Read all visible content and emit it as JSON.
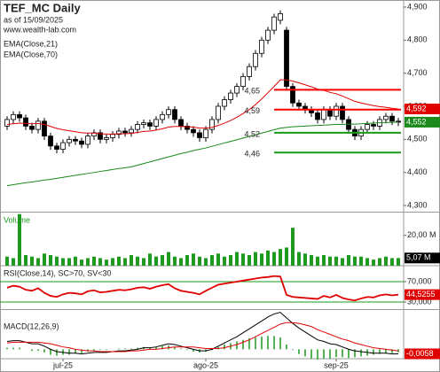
{
  "chart_data": [
    {
      "type": "candlestick",
      "title": "TEF_MC Daily",
      "subtitle": "as of 15/09/2025",
      "source": "www.wealth-lab.com",
      "ylim": [
        4280,
        4920
      ],
      "yticks": [
        {
          "value": 4300,
          "label": "4,300"
        },
        {
          "value": 4400,
          "label": "4,400"
        },
        {
          "value": 4500,
          "label": "4,500"
        },
        {
          "value": 4600,
          "label": "4,600"
        },
        {
          "value": 4700,
          "label": "4,700"
        },
        {
          "value": 4800,
          "label": "4,800"
        },
        {
          "value": 4900,
          "label": "4,900"
        }
      ],
      "open": [
        4540,
        4560,
        4575,
        4565,
        4540,
        4530,
        4555,
        4510,
        4480,
        4470,
        4490,
        4500,
        4495,
        4485,
        4510,
        4520,
        4500,
        4505,
        4515,
        4525,
        4520,
        4530,
        4545,
        4550,
        4540,
        4560,
        4575,
        4590,
        4560,
        4540,
        4530,
        4520,
        4505,
        4530,
        4560,
        4600,
        4620,
        4640,
        4660,
        4690,
        4720,
        4760,
        4800,
        4830,
        4860,
        4830,
        4660,
        4610,
        4600,
        4590,
        4580,
        4560,
        4590,
        4570,
        4600,
        4560,
        4530,
        4510,
        4530,
        4545,
        4540,
        4560,
        4570,
        4555
      ],
      "high": [
        4570,
        4585,
        4585,
        4575,
        4550,
        4565,
        4565,
        4520,
        4490,
        4500,
        4510,
        4510,
        4505,
        4520,
        4530,
        4530,
        4515,
        4525,
        4535,
        4535,
        4540,
        4555,
        4560,
        4560,
        4570,
        4585,
        4600,
        4600,
        4570,
        4550,
        4540,
        4530,
        4540,
        4570,
        4610,
        4630,
        4650,
        4670,
        4700,
        4730,
        4770,
        4810,
        4840,
        4880,
        4890,
        4840,
        4670,
        4620,
        4610,
        4600,
        4590,
        4600,
        4600,
        4610,
        4610,
        4570,
        4540,
        4540,
        4555,
        4555,
        4570,
        4580,
        4580,
        4565
      ],
      "low": [
        4528,
        4548,
        4553,
        4528,
        4518,
        4518,
        4498,
        4468,
        4458,
        4458,
        4478,
        4483,
        4473,
        4473,
        4498,
        4488,
        4488,
        4493,
        4503,
        4508,
        4508,
        4518,
        4533,
        4528,
        4528,
        4548,
        4563,
        4548,
        4528,
        4518,
        4508,
        4493,
        4493,
        4518,
        4548,
        4588,
        4608,
        4628,
        4648,
        4678,
        4708,
        4748,
        4788,
        4818,
        4848,
        4648,
        4598,
        4588,
        4578,
        4568,
        4548,
        4548,
        4558,
        4558,
        4548,
        4518,
        4498,
        4498,
        4518,
        4528,
        4528,
        4548,
        4543,
        4540
      ],
      "close": [
        4560,
        4575,
        4565,
        4540,
        4530,
        4555,
        4510,
        4480,
        4470,
        4490,
        4500,
        4495,
        4485,
        4510,
        4520,
        4500,
        4505,
        4515,
        4525,
        4520,
        4530,
        4545,
        4550,
        4540,
        4560,
        4575,
        4590,
        4560,
        4540,
        4530,
        4520,
        4505,
        4530,
        4560,
        4600,
        4620,
        4640,
        4660,
        4690,
        4720,
        4760,
        4800,
        4830,
        4870,
        4880,
        4660,
        4610,
        4600,
        4590,
        4580,
        4560,
        4590,
        4570,
        4600,
        4560,
        4530,
        4510,
        4530,
        4545,
        4540,
        4560,
        4570,
        4555,
        4552
      ],
      "series": [
        {
          "name": "EMA(Close,21)",
          "color": "#e00000",
          "last_label": "4,592",
          "values": [
            4545,
            4547,
            4549,
            4548,
            4547,
            4548,
            4545,
            4539,
            4533,
            4529,
            4526,
            4523,
            4520,
            4519,
            4519,
            4517,
            4516,
            4516,
            4517,
            4517,
            4518,
            4521,
            4524,
            4525,
            4528,
            4532,
            4537,
            4539,
            4539,
            4538,
            4537,
            4534,
            4534,
            4536,
            4542,
            4549,
            4557,
            4567,
            4578,
            4590,
            4605,
            4622,
            4641,
            4660,
            4680,
            4680,
            4676,
            4671,
            4665,
            4659,
            4652,
            4648,
            4642,
            4638,
            4631,
            4623,
            4615,
            4610,
            4606,
            4602,
            4599,
            4597,
            4594,
            4592
          ]
        },
        {
          "name": "EMA(Close,70)",
          "color": "#1a8a1a",
          "last_label": "4,552",
          "values": [
            4360,
            4363,
            4366,
            4369,
            4371,
            4374,
            4377,
            4379,
            4382,
            4385,
            4388,
            4391,
            4394,
            4397,
            4400,
            4403,
            4406,
            4409,
            4412,
            4414,
            4417,
            4422,
            4427,
            4432,
            4437,
            4442,
            4447,
            4452,
            4457,
            4461,
            4466,
            4470,
            4474,
            4479,
            4484,
            4489,
            4494,
            4499,
            4504,
            4509,
            4514,
            4519,
            4524,
            4529,
            4534,
            4536,
            4538,
            4539,
            4540,
            4541,
            4542,
            4543,
            4544,
            4545,
            4545,
            4546,
            4546,
            4547,
            4548,
            4549,
            4550,
            4551,
            4551,
            4552
          ]
        }
      ],
      "levels": [
        {
          "value": 4650,
          "label": "4,65",
          "color": "#ff0000"
        },
        {
          "value": 4590,
          "label": "4,59",
          "color": "#ff0000"
        },
        {
          "value": 4520,
          "label": "4,52",
          "color": "#1a9a1a"
        },
        {
          "value": 4460,
          "label": "4,46",
          "color": "#1a9a1a"
        }
      ]
    },
    {
      "type": "bar",
      "title": "Volume",
      "color": "#1f9a1f",
      "ylim": [
        0,
        35
      ],
      "yticks": [
        {
          "value": 20,
          "label": "20,00 M"
        }
      ],
      "last_label": "5,07 M",
      "values": [
        6,
        5,
        34,
        7,
        6,
        5,
        8,
        7,
        6,
        5,
        5,
        6,
        4,
        5,
        6,
        5,
        4,
        5,
        6,
        5,
        7,
        6,
        5,
        8,
        6,
        7,
        9,
        6,
        5,
        7,
        8,
        6,
        5,
        7,
        8,
        6,
        7,
        9,
        8,
        7,
        9,
        8,
        10,
        9,
        11,
        12,
        25,
        9,
        8,
        7,
        6,
        7,
        6,
        6,
        5,
        7,
        6,
        6,
        5,
        4,
        5,
        6,
        5,
        5.07
      ]
    },
    {
      "type": "line",
      "title": "RSI(Close,14), SC>70, SV<30",
      "color": "#e00000",
      "grid_color": "#1a9a1a",
      "ylim": [
        15,
        95
      ],
      "yticks": [
        {
          "value": 30,
          "label": "30,000"
        },
        {
          "value": 70,
          "label": "70,000"
        }
      ],
      "last_label": "44,5255",
      "values": [
        58,
        62,
        60,
        54,
        52,
        57,
        48,
        42,
        40,
        45,
        48,
        47,
        45,
        51,
        53,
        49,
        50,
        52,
        54,
        53,
        55,
        58,
        59,
        56,
        60,
        63,
        65,
        57,
        52,
        50,
        48,
        45,
        52,
        58,
        64,
        66,
        68,
        70,
        72,
        74,
        76,
        78,
        79,
        81,
        80,
        44,
        40,
        39,
        38,
        37,
        36,
        42,
        39,
        44,
        38,
        35,
        33,
        37,
        40,
        39,
        43,
        45,
        43,
        44.5255
      ]
    },
    {
      "type": "macd",
      "title": "MACD(12,26,9)",
      "ylim": [
        -0.012,
        0.05
      ],
      "last_label": "-0,0058",
      "macd": {
        "color": "#000000",
        "values": [
          0.01,
          0.011,
          0.011,
          0.009,
          0.007,
          0.007,
          0.004,
          0.0,
          -0.003,
          -0.004,
          -0.005,
          -0.005,
          -0.006,
          -0.005,
          -0.004,
          -0.004,
          -0.004,
          -0.003,
          -0.002,
          -0.002,
          -0.001,
          0.0,
          0.002,
          0.002,
          0.003,
          0.005,
          0.007,
          0.006,
          0.004,
          0.002,
          0.0,
          -0.002,
          -0.002,
          0.0,
          0.004,
          0.008,
          0.012,
          0.016,
          0.021,
          0.026,
          0.031,
          0.036,
          0.041,
          0.045,
          0.047,
          0.04,
          0.033,
          0.027,
          0.022,
          0.017,
          0.012,
          0.01,
          0.007,
          0.006,
          0.003,
          0.0,
          -0.002,
          -0.003,
          -0.004,
          -0.005,
          -0.005,
          -0.005,
          -0.006,
          -0.0058
        ]
      },
      "signal": {
        "color": "#e00000",
        "values": [
          0.008,
          0.009,
          0.009,
          0.009,
          0.009,
          0.009,
          0.008,
          0.007,
          0.005,
          0.003,
          0.002,
          0.0,
          -0.001,
          -0.002,
          -0.002,
          -0.003,
          -0.003,
          -0.003,
          -0.003,
          -0.003,
          -0.002,
          -0.002,
          -0.001,
          0.0,
          0.0,
          0.001,
          0.002,
          0.003,
          0.003,
          0.003,
          0.003,
          0.002,
          0.001,
          0.001,
          0.001,
          0.002,
          0.004,
          0.006,
          0.009,
          0.012,
          0.016,
          0.02,
          0.024,
          0.028,
          0.032,
          0.034,
          0.034,
          0.033,
          0.031,
          0.029,
          0.025,
          0.022,
          0.019,
          0.016,
          0.013,
          0.011,
          0.008,
          0.006,
          0.004,
          0.002,
          0.001,
          0.0,
          -0.001,
          -0.002
        ]
      },
      "histogram": {
        "color": "#1f9a1f",
        "values": [
          0.002,
          0.002,
          0.002,
          0,
          -0.002,
          -0.002,
          -0.004,
          -0.007,
          -0.008,
          -0.007,
          -0.007,
          -0.005,
          -0.005,
          -0.003,
          -0.002,
          -0.001,
          -0.001,
          0,
          0.001,
          0.001,
          0.001,
          0.002,
          0.003,
          0.002,
          0.003,
          0.004,
          0.005,
          0.003,
          0.001,
          -0.001,
          -0.003,
          -0.004,
          -0.003,
          -0.001,
          0.003,
          0.006,
          0.008,
          0.01,
          0.012,
          0.014,
          0.015,
          0.016,
          0.017,
          0.017,
          0.015,
          0.006,
          -0.001,
          -0.006,
          -0.009,
          -0.012,
          -0.013,
          -0.012,
          -0.012,
          -0.01,
          -0.01,
          -0.011,
          -0.01,
          -0.009,
          -0.008,
          -0.007,
          -0.006,
          -0.005,
          -0.005,
          -0.0038
        ]
      },
      "xticks": [
        {
          "value": 9,
          "label": "jul-25"
        },
        {
          "value": 32,
          "label": "ago-25"
        },
        {
          "value": 53,
          "label": "sep-25"
        }
      ]
    }
  ]
}
